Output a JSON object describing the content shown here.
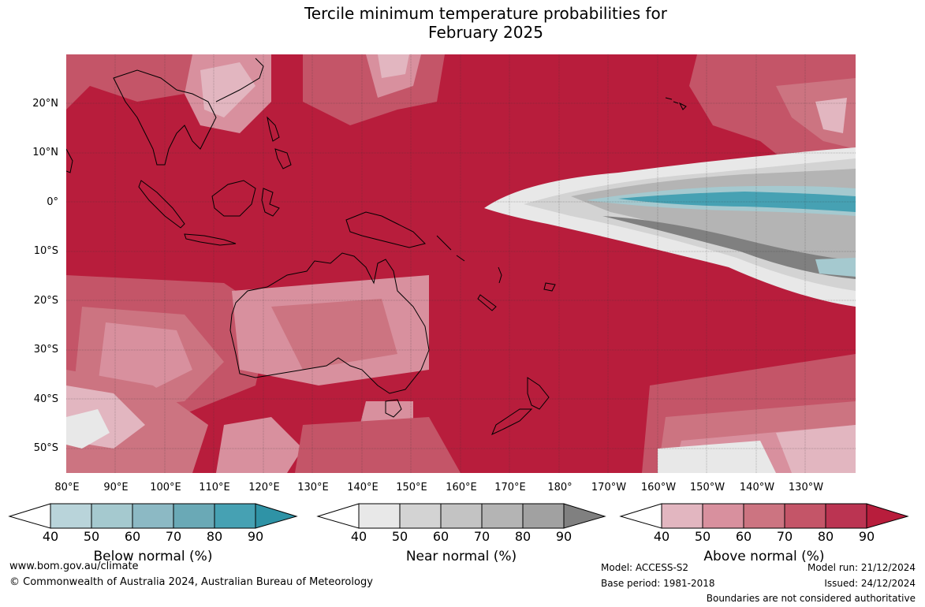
{
  "title_line1": "Tercile minimum temperature probabilities for",
  "title_line2": "February 2025",
  "lat_labels": [
    "20°N",
    "10°N",
    "0°",
    "10°S",
    "20°S",
    "30°S",
    "40°S",
    "50°S"
  ],
  "lon_labels": [
    "80°E",
    "90°E",
    "100°E",
    "110°E",
    "120°E",
    "130°E",
    "140°E",
    "150°E",
    "160°E",
    "170°E",
    "180°",
    "170°W",
    "160°W",
    "150°W",
    "140°W",
    "130°W"
  ],
  "colorbars": [
    {
      "label": "Below normal (%)",
      "ticks": [
        "40",
        "50",
        "60",
        "70",
        "80",
        "90"
      ],
      "colors": [
        "#ffffff",
        "#b9d4da",
        "#a5c9cf",
        "#8cb9c4",
        "#6aa9b6",
        "#46a1b3",
        "#2f93a6"
      ]
    },
    {
      "label": "Near normal (%)",
      "ticks": [
        "40",
        "50",
        "60",
        "70",
        "80",
        "90"
      ],
      "colors": [
        "#ffffff",
        "#e8e8e8",
        "#d3d3d3",
        "#c3c3c3",
        "#b4b4b4",
        "#a1a1a1",
        "#808080"
      ]
    },
    {
      "label": "Above normal (%)",
      "ticks": [
        "40",
        "50",
        "60",
        "70",
        "80",
        "90"
      ],
      "colors": [
        "#ffffff",
        "#e2b6c0",
        "#d8909e",
        "#cc7481",
        "#c45568",
        "#bb3452",
        "#b81d3c"
      ]
    }
  ],
  "footer": {
    "website": "www.bom.gov.au/climate",
    "copyright": "© Commonwealth of Australia 2024, Australian Bureau of Meteorology",
    "model": "Model: ACCESS-S2",
    "base_period": "Base period: 1981-2018",
    "model_run": "Model run: 21/12/2024",
    "issued": "Issued: 24/12/2024",
    "disclaimer": "Boundaries are not considered authoritative"
  }
}
